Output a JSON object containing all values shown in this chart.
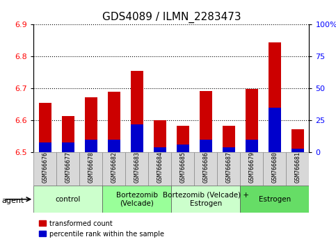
{
  "title": "GDS4089 / ILMN_2283473",
  "samples": [
    "GSM766676",
    "GSM766677",
    "GSM766678",
    "GSM766682",
    "GSM766683",
    "GSM766684",
    "GSM766685",
    "GSM766686",
    "GSM766687",
    "GSM766679",
    "GSM766680",
    "GSM766681"
  ],
  "red_values": [
    6.655,
    6.613,
    6.672,
    6.69,
    6.755,
    6.6,
    6.583,
    6.692,
    6.583,
    6.698,
    6.845,
    6.572
  ],
  "blue_pct": [
    8,
    8,
    10,
    10,
    22,
    4,
    6,
    10,
    4,
    10,
    35,
    3
  ],
  "base": 6.5,
  "ylim_left": [
    6.5,
    6.9
  ],
  "ylim_right": [
    0,
    100
  ],
  "yticks_left": [
    6.5,
    6.6,
    6.7,
    6.8,
    6.9
  ],
  "yticks_right": [
    0,
    25,
    50,
    75,
    100
  ],
  "groups": [
    {
      "label": "control",
      "start": 0,
      "end": 3,
      "color": "#ccffcc"
    },
    {
      "label": "Bortezomib\n(Velcade)",
      "start": 3,
      "end": 6,
      "color": "#99ff99"
    },
    {
      "label": "Bortezomib (Velcade) +\nEstrogen",
      "start": 6,
      "end": 9,
      "color": "#ccffcc"
    },
    {
      "label": "Estrogen",
      "start": 9,
      "end": 12,
      "color": "#66dd66"
    }
  ],
  "bar_color_red": "#cc0000",
  "bar_color_blue": "#0000cc",
  "bar_width": 0.55,
  "legend_red": "transformed count",
  "legend_blue": "percentile rank within the sample",
  "agent_label": "agent",
  "title_fontsize": 11,
  "tick_fontsize": 8,
  "group_label_fontsize": 7.5,
  "sample_fontsize": 6
}
